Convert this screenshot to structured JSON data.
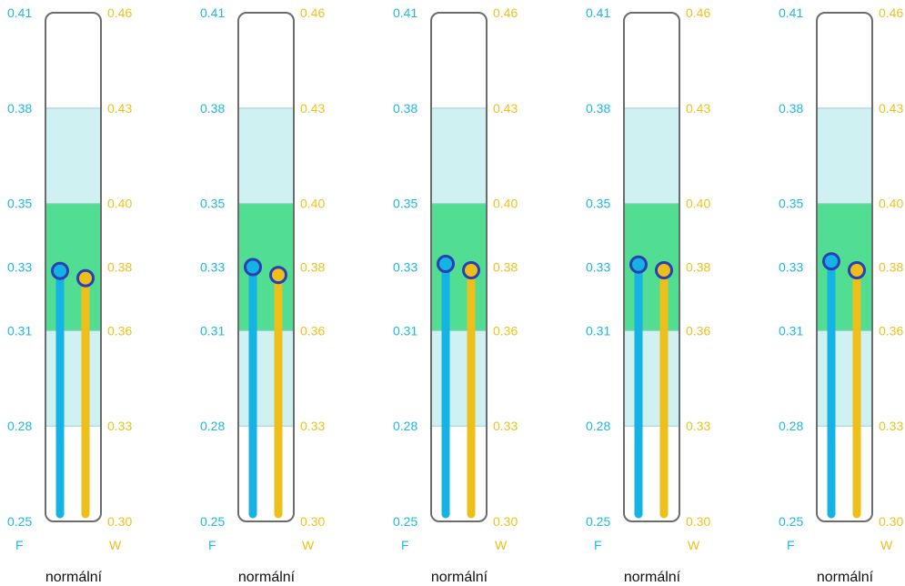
{
  "colors": {
    "f_series": "#14b3e4",
    "w_series": "#eebf18",
    "marker_ring": "#2b3fb5",
    "band_light": "#cff1f2",
    "band_normal": "#52de92",
    "frame": "#6c6c6c"
  },
  "chart_data": [
    {
      "type": "gauge",
      "status": "normální",
      "f_axis": {
        "label": "F",
        "range": [
          0.25,
          0.41
        ],
        "ticks": [
          "0.41",
          "0.38",
          "0.35",
          "0.33",
          "0.31",
          "0.28",
          "0.25"
        ]
      },
      "w_axis": {
        "label": "W",
        "range": [
          0.3,
          0.46
        ],
        "ticks": [
          "0.46",
          "0.43",
          "0.40",
          "0.38",
          "0.36",
          "0.33",
          "0.30"
        ]
      },
      "bands": [
        {
          "from": 0.28,
          "to": 0.31,
          "kind": "light"
        },
        {
          "from": 0.31,
          "to": 0.35,
          "kind": "normal"
        },
        {
          "from": 0.35,
          "to": 0.38,
          "kind": "light"
        }
      ],
      "series": [
        {
          "name": "F",
          "value": 0.3288
        },
        {
          "name": "W",
          "value": 0.3765
        }
      ]
    },
    {
      "type": "gauge",
      "status": "normální",
      "f_axis": {
        "label": "F",
        "range": [
          0.25,
          0.41
        ],
        "ticks": [
          "0.41",
          "0.38",
          "0.35",
          "0.33",
          "0.31",
          "0.28",
          "0.25"
        ]
      },
      "w_axis": {
        "label": "W",
        "range": [
          0.3,
          0.46
        ],
        "ticks": [
          "0.46",
          "0.43",
          "0.40",
          "0.38",
          "0.36",
          "0.33",
          "0.30"
        ]
      },
      "bands": [
        {
          "from": 0.28,
          "to": 0.31,
          "kind": "light"
        },
        {
          "from": 0.31,
          "to": 0.35,
          "kind": "normal"
        },
        {
          "from": 0.35,
          "to": 0.38,
          "kind": "light"
        }
      ],
      "series": [
        {
          "name": "F",
          "value": 0.33
        },
        {
          "name": "W",
          "value": 0.3775
        }
      ]
    },
    {
      "type": "gauge",
      "status": "normální",
      "f_axis": {
        "label": "F",
        "range": [
          0.25,
          0.41
        ],
        "ticks": [
          "0.41",
          "0.38",
          "0.35",
          "0.33",
          "0.31",
          "0.28",
          "0.25"
        ]
      },
      "w_axis": {
        "label": "W",
        "range": [
          0.3,
          0.46
        ],
        "ticks": [
          "0.46",
          "0.43",
          "0.40",
          "0.38",
          "0.36",
          "0.33",
          "0.30"
        ]
      },
      "bands": [
        {
          "from": 0.28,
          "to": 0.31,
          "kind": "light"
        },
        {
          "from": 0.31,
          "to": 0.35,
          "kind": "normal"
        },
        {
          "from": 0.35,
          "to": 0.38,
          "kind": "light"
        }
      ],
      "series": [
        {
          "name": "F",
          "value": 0.331
        },
        {
          "name": "W",
          "value": 0.379
        }
      ]
    },
    {
      "type": "gauge",
      "status": "normální",
      "f_axis": {
        "label": "F",
        "range": [
          0.25,
          0.41
        ],
        "ticks": [
          "0.41",
          "0.38",
          "0.35",
          "0.33",
          "0.31",
          "0.28",
          "0.25"
        ]
      },
      "w_axis": {
        "label": "W",
        "range": [
          0.3,
          0.46
        ],
        "ticks": [
          "0.46",
          "0.43",
          "0.40",
          "0.38",
          "0.36",
          "0.33",
          "0.30"
        ]
      },
      "bands": [
        {
          "from": 0.28,
          "to": 0.31,
          "kind": "light"
        },
        {
          "from": 0.31,
          "to": 0.35,
          "kind": "normal"
        },
        {
          "from": 0.35,
          "to": 0.38,
          "kind": "light"
        }
      ],
      "series": [
        {
          "name": "F",
          "value": 0.3308
        },
        {
          "name": "W",
          "value": 0.379
        }
      ]
    },
    {
      "type": "gauge",
      "status": "normální",
      "f_axis": {
        "label": "F",
        "range": [
          0.25,
          0.41
        ],
        "ticks": [
          "0.41",
          "0.38",
          "0.35",
          "0.33",
          "0.31",
          "0.28",
          "0.25"
        ]
      },
      "w_axis": {
        "label": "W",
        "range": [
          0.3,
          0.46
        ],
        "ticks": [
          "0.46",
          "0.43",
          "0.40",
          "0.38",
          "0.36",
          "0.33",
          "0.30"
        ]
      },
      "bands": [
        {
          "from": 0.28,
          "to": 0.31,
          "kind": "light"
        },
        {
          "from": 0.31,
          "to": 0.35,
          "kind": "normal"
        },
        {
          "from": 0.35,
          "to": 0.38,
          "kind": "light"
        }
      ],
      "series": [
        {
          "name": "F",
          "value": 0.3318
        },
        {
          "name": "W",
          "value": 0.379
        }
      ]
    }
  ]
}
